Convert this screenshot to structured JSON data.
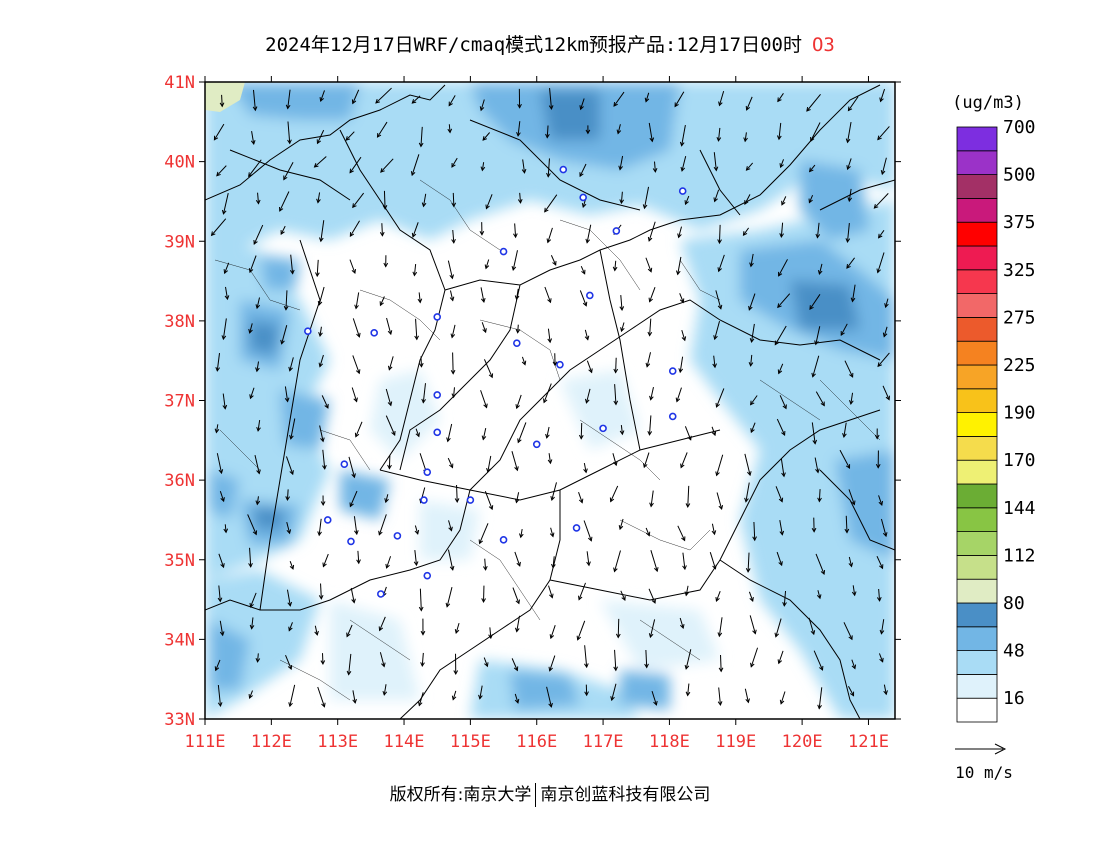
{
  "title": {
    "main": "2024年12月17日WRF/cmaq模式12km预报产品:12月17日00时",
    "pollutant": "O3"
  },
  "axes": {
    "lat_labels": [
      "41N",
      "40N",
      "39N",
      "38N",
      "37N",
      "36N",
      "35N",
      "34N",
      "33N"
    ],
    "lon_labels": [
      "111E",
      "112E",
      "113E",
      "114E",
      "115E",
      "116E",
      "117E",
      "118E",
      "119E",
      "120E",
      "121E"
    ],
    "lat_range": [
      33,
      41
    ],
    "lon_range": [
      111,
      121.4
    ],
    "label_color": "#ee3333"
  },
  "legend": {
    "unit": "(ug/m3)",
    "colors": [
      "#ffffff",
      "#dff2fb",
      "#a9dcf5",
      "#72b6e5",
      "#4a8fc6",
      "#e0ecc4",
      "#c6e08a",
      "#a6d467",
      "#88c544",
      "#6bad34",
      "#eef074",
      "#f5dc4c",
      "#fff200",
      "#f8c21a",
      "#f7a426",
      "#f58220",
      "#ec5a2c",
      "#f26868",
      "#f6374e",
      "#ee1b52",
      "#ff0000",
      "#c9197b",
      "#a33066",
      "#9b32c8",
      "#7d2ee0"
    ],
    "tick_labels": [
      "16",
      "48",
      "80",
      "112",
      "144",
      "170",
      "190",
      "225",
      "275",
      "325",
      "375",
      "500",
      "700"
    ]
  },
  "wind_scale": {
    "label": "10 m/s"
  },
  "stations": [
    [
      116.4,
      39.9
    ],
    [
      116.7,
      39.55
    ],
    [
      117.2,
      39.13
    ],
    [
      118.2,
      39.63
    ],
    [
      115.5,
      38.87
    ],
    [
      116.8,
      38.32
    ],
    [
      114.5,
      38.05
    ],
    [
      112.55,
      37.87
    ],
    [
      113.55,
      37.85
    ],
    [
      115.7,
      37.72
    ],
    [
      116.35,
      37.45
    ],
    [
      118.05,
      37.37
    ],
    [
      114.5,
      37.07
    ],
    [
      118.05,
      36.8
    ],
    [
      114.5,
      36.6
    ],
    [
      117.0,
      36.65
    ],
    [
      116.0,
      36.45
    ],
    [
      113.1,
      36.2
    ],
    [
      114.35,
      36.1
    ],
    [
      115.0,
      35.75
    ],
    [
      114.3,
      35.75
    ],
    [
      112.85,
      35.5
    ],
    [
      113.2,
      35.23
    ],
    [
      113.9,
      35.3
    ],
    [
      115.5,
      35.25
    ],
    [
      116.6,
      35.4
    ],
    [
      114.35,
      34.8
    ],
    [
      113.65,
      34.57
    ]
  ],
  "footer": {
    "left": "版权所有:南京大学",
    "right": "南京创蓝科技有限公司"
  }
}
